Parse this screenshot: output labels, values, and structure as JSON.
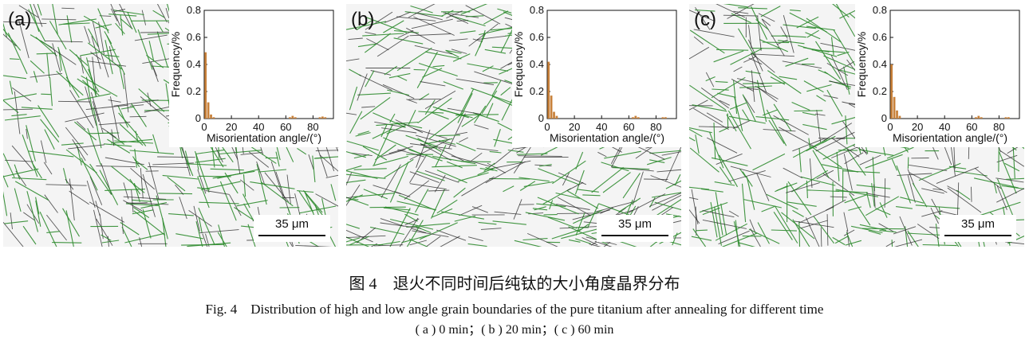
{
  "caption": {
    "cn": "图 4　退火不同时间后纯钛的大小角度晶界分布",
    "en": "Fig. 4　Distribution of high and low angle grain boundaries of the pure titanium after annealing for different time",
    "sub": "( a ) 0 min；( b ) 20 min；( c ) 60 min"
  },
  "colors": {
    "high_angle": "#2e8b2e",
    "low_angle": "#222222",
    "bar": "#c8813a"
  },
  "chart_data": [
    {
      "type": "bar",
      "panel_label": "(a)",
      "scale_bar": "35 μm",
      "xlabel": "Misorientation angle/(°)",
      "ylabel": "Frequency/%",
      "xlim": [
        0,
        95
      ],
      "ylim": [
        0,
        0.8
      ],
      "xticks": [
        0,
        20,
        40,
        60,
        80
      ],
      "yticks": [
        0,
        0.2,
        0.4,
        0.6,
        0.8
      ],
      "x": [
        1,
        3,
        5,
        7,
        63,
        65,
        67,
        85,
        87,
        89
      ],
      "values": [
        0.49,
        0.12,
        0.03,
        0.01,
        0.01,
        0.02,
        0.01,
        0.01,
        0.015,
        0.01
      ]
    },
    {
      "type": "bar",
      "panel_label": "(b)",
      "scale_bar": "35 μm",
      "xlabel": "Misorientation angle/(°)",
      "ylabel": "Frequency/%",
      "xlim": [
        0,
        95
      ],
      "ylim": [
        0,
        0.8
      ],
      "xticks": [
        0,
        20,
        40,
        60,
        80
      ],
      "yticks": [
        0,
        0.2,
        0.4,
        0.6,
        0.8
      ],
      "x": [
        1,
        3,
        5,
        7,
        63,
        65,
        67,
        85,
        87
      ],
      "values": [
        0.42,
        0.17,
        0.05,
        0.02,
        0.01,
        0.02,
        0.01,
        0.01,
        0.01
      ]
    },
    {
      "type": "bar",
      "panel_label": "(c)",
      "scale_bar": "35 μm",
      "xlabel": "Misorientation angle/(°)",
      "ylabel": "Frequency/%",
      "xlim": [
        0,
        95
      ],
      "ylim": [
        0,
        0.8
      ],
      "xticks": [
        0,
        20,
        40,
        60,
        80
      ],
      "yticks": [
        0,
        0.2,
        0.4,
        0.6,
        0.8
      ],
      "x": [
        1,
        3,
        5,
        7,
        63,
        65,
        67,
        85,
        87
      ],
      "values": [
        0.4,
        0.16,
        0.06,
        0.02,
        0.01,
        0.02,
        0.01,
        0.01,
        0.01
      ]
    }
  ]
}
